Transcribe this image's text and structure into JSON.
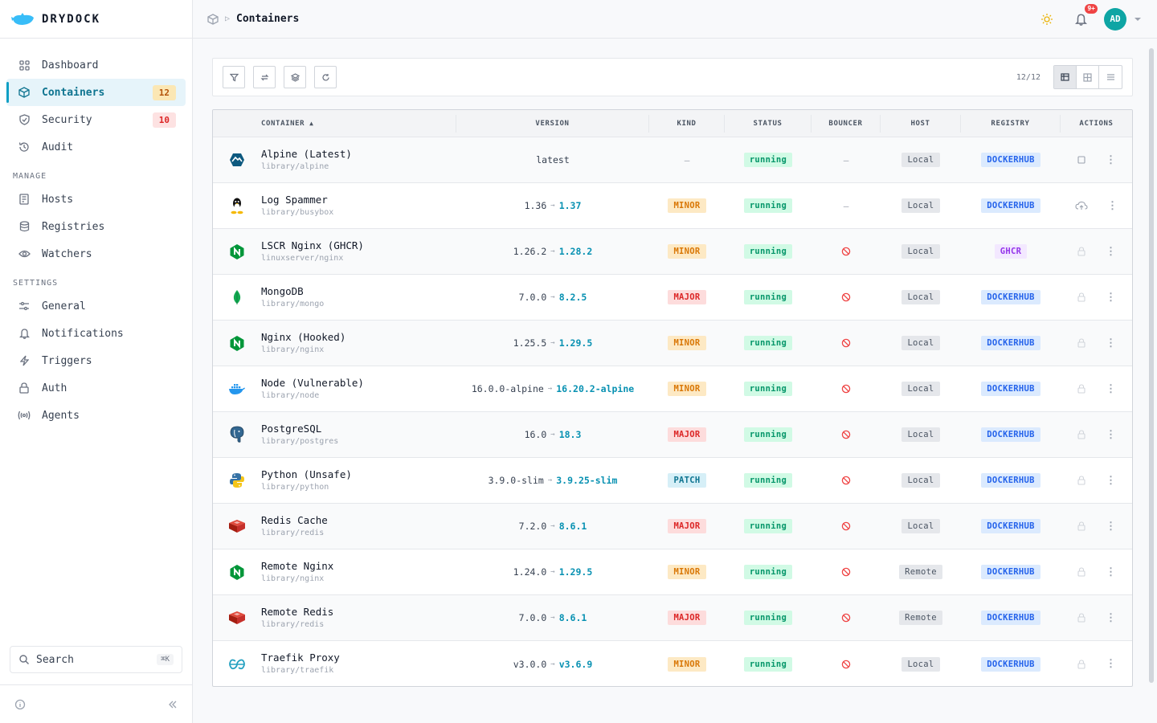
{
  "brand": {
    "name": "DRYDOCK"
  },
  "nav": {
    "main": [
      {
        "label": "Dashboard",
        "icon": "grid-icon"
      },
      {
        "label": "Containers",
        "icon": "cube-icon",
        "count": "12",
        "active": true
      },
      {
        "label": "Security",
        "icon": "shield-icon",
        "count": "10"
      },
      {
        "label": "Audit",
        "icon": "history-icon"
      }
    ],
    "manage_title": "MANAGE",
    "manage": [
      {
        "label": "Hosts",
        "icon": "server-icon"
      },
      {
        "label": "Registries",
        "icon": "database-icon"
      },
      {
        "label": "Watchers",
        "icon": "eye-icon"
      }
    ],
    "settings_title": "SETTINGS",
    "settings": [
      {
        "label": "General",
        "icon": "sliders-icon"
      },
      {
        "label": "Notifications",
        "icon": "bell-icon"
      },
      {
        "label": "Triggers",
        "icon": "bolt-icon"
      },
      {
        "label": "Auth",
        "icon": "lock-icon"
      },
      {
        "label": "Agents",
        "icon": "broadcast-icon"
      }
    ]
  },
  "search": {
    "label": "Search",
    "shortcut": "⌘K"
  },
  "header": {
    "title": "Containers",
    "notif_badge": "9+",
    "avatar": "AD"
  },
  "toolbar": {
    "count": "12/12"
  },
  "table": {
    "headers": {
      "container": "CONTAINER",
      "version": "VERSION",
      "kind": "KIND",
      "status": "STATUS",
      "bouncer": "BOUNCER",
      "host": "HOST",
      "registry": "REGISTRY",
      "actions": "ACTIONS"
    },
    "rows": [
      {
        "name": "Alpine (Latest)",
        "image": "library/alpine",
        "version": "latest",
        "new": "",
        "kind": "–",
        "status": "running",
        "bouncer": "–",
        "host": "Local",
        "registry": "DOCKERHUB",
        "icon": "alpine-icon"
      },
      {
        "name": "Log Spammer",
        "image": "library/busybox",
        "version": "1.36",
        "new": "1.37",
        "kind": "MINOR",
        "status": "running",
        "bouncer": "–",
        "host": "Local",
        "registry": "DOCKERHUB",
        "icon": "linux-icon"
      },
      {
        "name": "LSCR Nginx (GHCR)",
        "image": "linuxserver/nginx",
        "version": "1.26.2",
        "new": "1.28.2",
        "kind": "MINOR",
        "status": "running",
        "bouncer": "blocked",
        "host": "Local",
        "registry": "GHCR",
        "icon": "nginx-icon"
      },
      {
        "name": "MongoDB",
        "image": "library/mongo",
        "version": "7.0.0",
        "new": "8.2.5",
        "kind": "MAJOR",
        "status": "running",
        "bouncer": "blocked",
        "host": "Local",
        "registry": "DOCKERHUB",
        "icon": "mongodb-icon"
      },
      {
        "name": "Nginx (Hooked)",
        "image": "library/nginx",
        "version": "1.25.5",
        "new": "1.29.5",
        "kind": "MINOR",
        "status": "running",
        "bouncer": "blocked",
        "host": "Local",
        "registry": "DOCKERHUB",
        "icon": "nginx-icon"
      },
      {
        "name": "Node (Vulnerable)",
        "image": "library/node",
        "version": "16.0.0-alpine",
        "new": "16.20.2-alpine",
        "kind": "MINOR",
        "status": "running",
        "bouncer": "blocked",
        "host": "Local",
        "registry": "DOCKERHUB",
        "icon": "docker-icon"
      },
      {
        "name": "PostgreSQL",
        "image": "library/postgres",
        "version": "16.0",
        "new": "18.3",
        "kind": "MAJOR",
        "status": "running",
        "bouncer": "blocked",
        "host": "Local",
        "registry": "DOCKERHUB",
        "icon": "postgres-icon"
      },
      {
        "name": "Python (Unsafe)",
        "image": "library/python",
        "version": "3.9.0-slim",
        "new": "3.9.25-slim",
        "kind": "PATCH",
        "status": "running",
        "bouncer": "blocked",
        "host": "Local",
        "registry": "DOCKERHUB",
        "icon": "python-icon"
      },
      {
        "name": "Redis Cache",
        "image": "library/redis",
        "version": "7.2.0",
        "new": "8.6.1",
        "kind": "MAJOR",
        "status": "running",
        "bouncer": "blocked",
        "host": "Local",
        "registry": "DOCKERHUB",
        "icon": "redis-icon"
      },
      {
        "name": "Remote Nginx",
        "image": "library/nginx",
        "version": "1.24.0",
        "new": "1.29.5",
        "kind": "MINOR",
        "status": "running",
        "bouncer": "blocked",
        "host": "Remote",
        "registry": "DOCKERHUB",
        "icon": "nginx-icon"
      },
      {
        "name": "Remote Redis",
        "image": "library/redis",
        "version": "7.0.0",
        "new": "8.6.1",
        "kind": "MAJOR",
        "status": "running",
        "bouncer": "blocked",
        "host": "Remote",
        "registry": "DOCKERHUB",
        "icon": "redis-icon"
      },
      {
        "name": "Traefik Proxy",
        "image": "library/traefik",
        "version": "v3.0.0",
        "new": "v3.6.9",
        "kind": "MINOR",
        "status": "running",
        "bouncer": "blocked",
        "host": "Local",
        "registry": "DOCKERHUB",
        "icon": "traefik-icon"
      }
    ]
  }
}
